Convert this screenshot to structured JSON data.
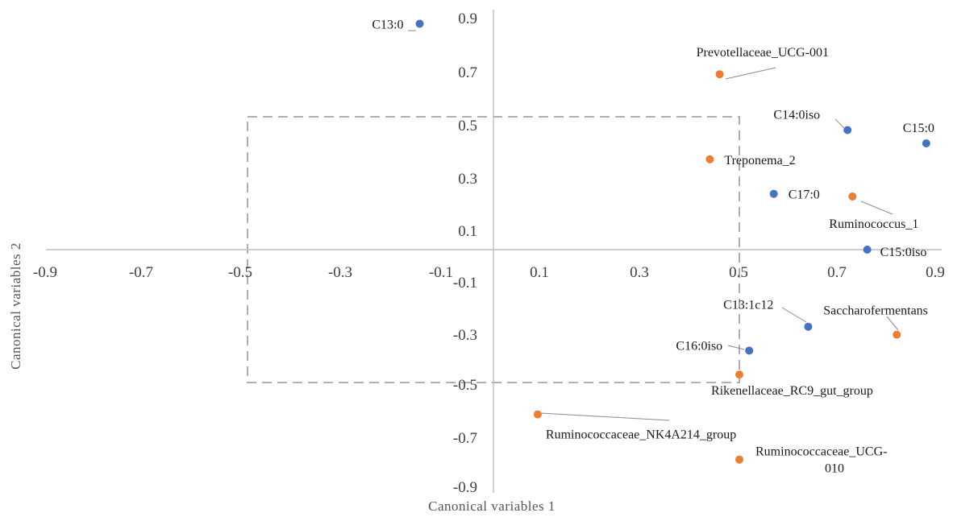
{
  "chart_data": {
    "type": "scatter",
    "title": "",
    "xlabel": "Canonical  variables  1",
    "ylabel": "Canonical  variables  2",
    "xlim": [
      -0.9,
      0.9
    ],
    "ylim": [
      -0.9,
      0.9
    ],
    "x_ticks": [
      "-0.9",
      "-0.7",
      "-0.5",
      "-0.3",
      "-0.1",
      "0.1",
      "0.3",
      "0.5",
      "0.7",
      "0.9"
    ],
    "y_ticks": [
      "0.9",
      "0.7",
      "0.5",
      "0.3",
      "0.1",
      "-0.1",
      "-0.3",
      "-0.5",
      "-0.7",
      "-0.9"
    ],
    "grid": false,
    "reference_box": {
      "x": [
        -0.5,
        0.5
      ],
      "y": [
        -0.5,
        0.5
      ],
      "style": "dashed"
    },
    "series": [
      {
        "color": "#4472c4",
        "points": [
          {
            "label": "C13:0",
            "x": -0.15,
            "y": 0.85
          },
          {
            "label": "C14:0iso",
            "x": 0.72,
            "y": 0.45
          },
          {
            "label": "C15:0",
            "x": 0.88,
            "y": 0.4
          },
          {
            "label": "C17:0",
            "x": 0.57,
            "y": 0.21
          },
          {
            "label": "C15:0iso",
            "x": 0.76,
            "y": 0.0
          },
          {
            "label": "C13:1c12",
            "x": 0.64,
            "y": -0.29
          },
          {
            "label": "C16:0iso",
            "x": 0.52,
            "y": -0.38
          }
        ]
      },
      {
        "color": "#ed7d31",
        "points": [
          {
            "label": "Prevotellaceae_UCG-001",
            "x": 0.46,
            "y": 0.66
          },
          {
            "label": "Treponema_2",
            "x": 0.44,
            "y": 0.34
          },
          {
            "label": "Ruminococcus_1",
            "x": 0.73,
            "y": 0.2
          },
          {
            "label": "Saccharofermentans",
            "x": 0.82,
            "y": -0.32
          },
          {
            "label": "Rikenellaceae_RC9_gut_group",
            "x": 0.5,
            "y": -0.47
          },
          {
            "label": "Ruminococcaceae_NK4A214_group",
            "x": 0.09,
            "y": -0.62
          },
          {
            "label": "Ruminococcaceae_UCG-010",
            "x": 0.5,
            "y": -0.79
          }
        ]
      }
    ]
  }
}
